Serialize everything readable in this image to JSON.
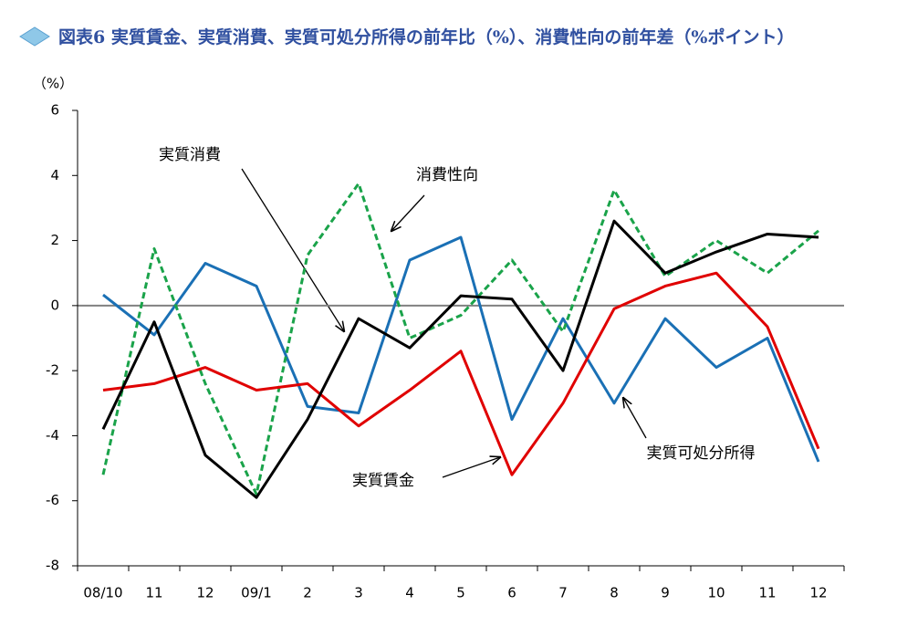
{
  "chart_data": {
    "type": "line",
    "title": "図表6 実質賃金、実質消費、実質可処分所得の前年比（%）、消費性向の前年差（%ポイント）",
    "y_label": "（%）",
    "categories": [
      "08/10",
      "11",
      "12",
      "09/1",
      "2",
      "3",
      "4",
      "5",
      "6",
      "7",
      "8",
      "9",
      "10",
      "11",
      "12"
    ],
    "ylim": [
      -8,
      6
    ],
    "yticks": [
      -8,
      -6,
      -4,
      -2,
      0,
      2,
      4,
      6
    ],
    "series": [
      {
        "name": "実質可処分所得",
        "color": "#1a70b5",
        "dashed": false,
        "values": [
          0.33,
          -0.9,
          1.3,
          0.6,
          -3.1,
          -3.3,
          1.4,
          2.1,
          -3.5,
          -0.4,
          -3.0,
          -0.4,
          -1.9,
          -1.0,
          -4.8
        ]
      },
      {
        "name": "消費性向",
        "color": "#1aa34a",
        "dashed": true,
        "values": [
          -5.2,
          1.75,
          -2.4,
          -5.8,
          1.55,
          3.75,
          -1.0,
          -0.3,
          1.4,
          -0.8,
          3.55,
          0.9,
          2.0,
          1.0,
          2.3
        ]
      },
      {
        "name": "実質賃金",
        "color": "#e00000",
        "dashed": false,
        "values": [
          -2.6,
          -2.4,
          -1.9,
          -2.6,
          -2.4,
          -3.7,
          -2.6,
          -1.4,
          -5.2,
          -3.0,
          -0.1,
          0.6,
          1.0,
          -0.65,
          -4.4
        ]
      },
      {
        "name": "実質消費",
        "color": "#000000",
        "dashed": false,
        "values": [
          -3.8,
          -0.5,
          -4.6,
          -5.9,
          -3.5,
          -0.4,
          -1.3,
          0.3,
          0.2,
          -2.0,
          2.6,
          1.0,
          1.65,
          2.2,
          2.1
        ]
      }
    ]
  }
}
